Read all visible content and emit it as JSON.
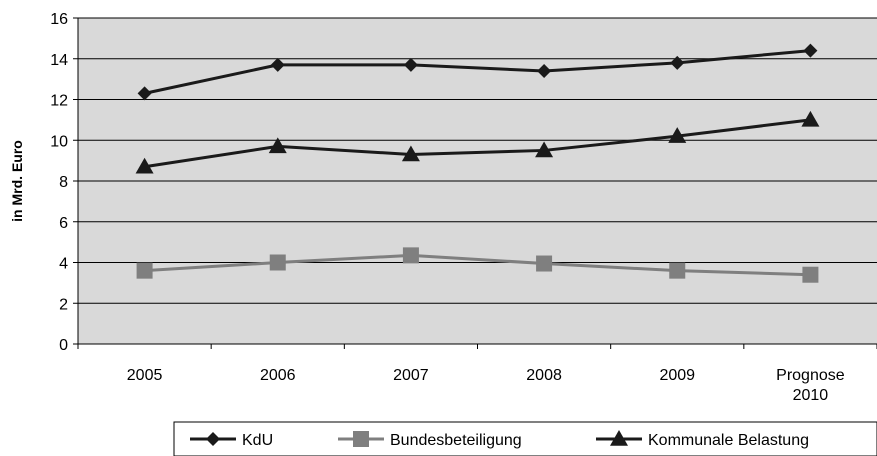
{
  "chart_data": {
    "type": "line",
    "categories": [
      "2005",
      "2006",
      "2007",
      "2008",
      "2009",
      [
        "Prognose",
        "2010"
      ]
    ],
    "ylabel": "in Mrd. Euro",
    "ylim": [
      0,
      16
    ],
    "yticks": [
      0,
      2,
      4,
      6,
      8,
      10,
      12,
      14,
      16
    ],
    "grid": true,
    "legend_position": "bottom-right",
    "series": [
      {
        "name": "KdU",
        "values": [
          12.3,
          13.7,
          13.7,
          13.4,
          13.8,
          14.4
        ],
        "color": "#1a1a1a",
        "marker": "diamond"
      },
      {
        "name": "Bundesbeteiligung",
        "values": [
          3.6,
          4.0,
          4.35,
          3.95,
          3.6,
          3.4
        ],
        "color": "#7f7f7f",
        "marker": "square"
      },
      {
        "name": "Kommunale Belastung",
        "values": [
          8.7,
          9.7,
          9.3,
          9.5,
          10.2,
          11.0
        ],
        "color": "#1a1a1a",
        "marker": "triangle"
      }
    ],
    "plot_background": "#d9d9d9"
  }
}
